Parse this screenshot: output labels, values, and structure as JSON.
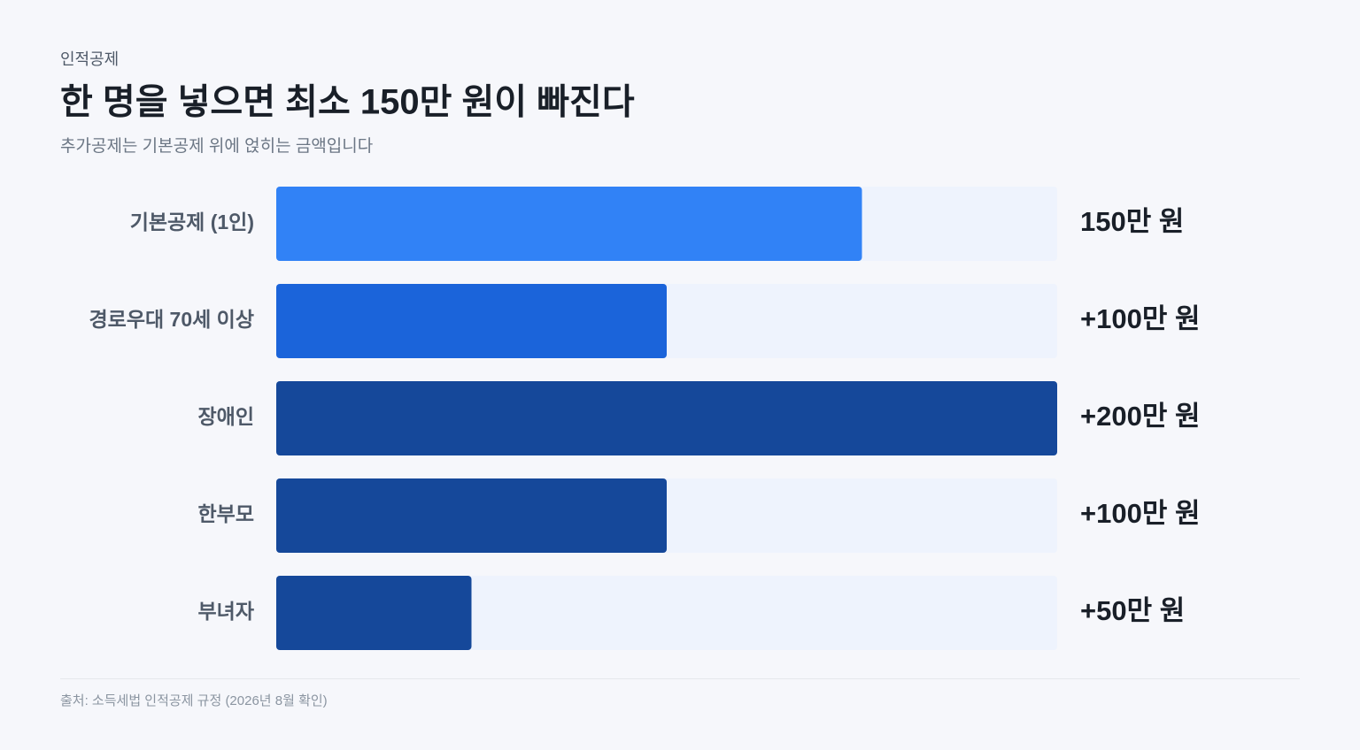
{
  "chart_data": {
    "type": "bar",
    "orientation": "horizontal",
    "kicker": "인적공제",
    "title": "한 명을 넣으면 최소 150만 원이 빠진다",
    "subtitle": "추가공제는 기본공제 위에 얹히는 금액입니다",
    "categories": [
      "기본공제 (1인)",
      "경로우대 70세 이상",
      "장애인",
      "한부모",
      "부녀자"
    ],
    "values": [
      150,
      100,
      200,
      100,
      50
    ],
    "value_labels": [
      "150만 원",
      "+100만 원",
      "+200만 원",
      "+100만 원",
      "+50만 원"
    ],
    "colors": [
      "#3182f6",
      "#1b64da",
      "#15489a",
      "#15489a",
      "#15489a"
    ],
    "track_color": "#eef3fd",
    "source": "출처: 소득세법 인적공제 규정 (2026년 8월 확인)"
  }
}
